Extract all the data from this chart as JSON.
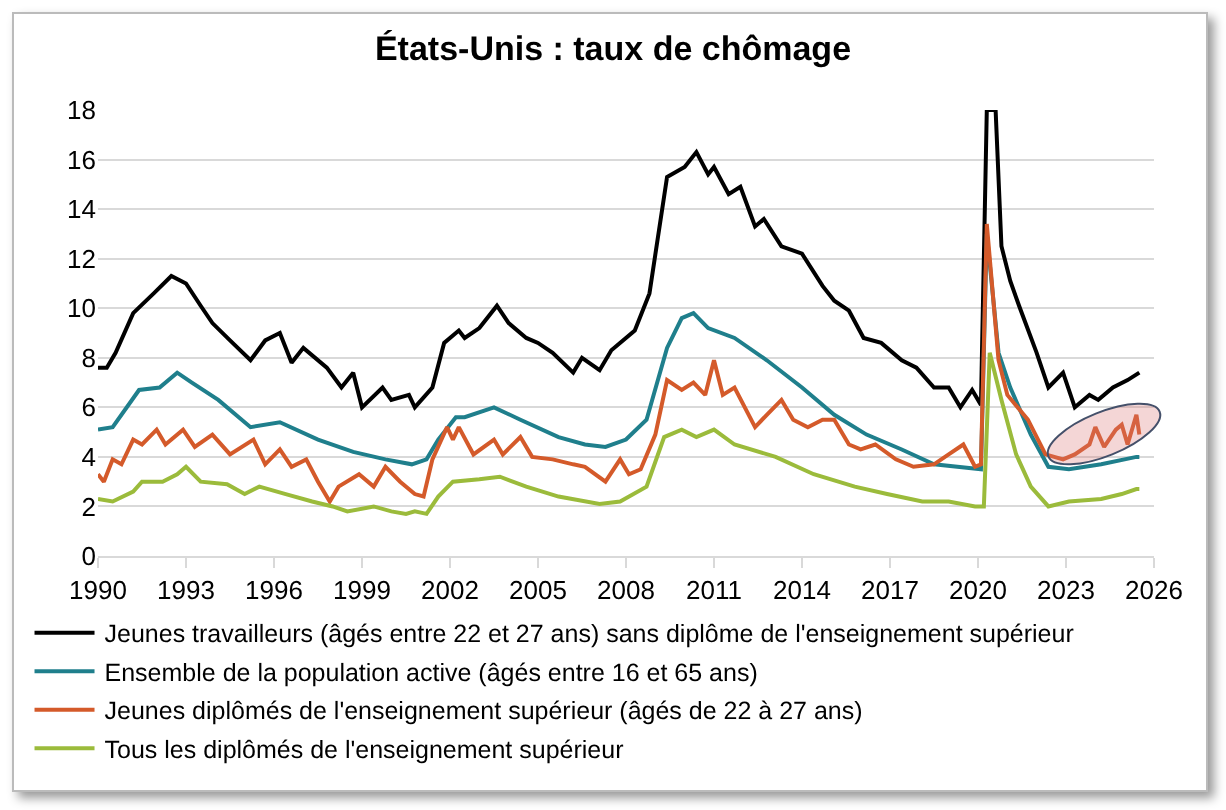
{
  "chart_data": {
    "type": "line",
    "title": "États-Unis : taux de chômage",
    "xlim": [
      1990,
      2026
    ],
    "xticks": [
      1990,
      1993,
      1996,
      1999,
      2002,
      2005,
      2008,
      2011,
      2014,
      2017,
      2020,
      2023,
      2026
    ],
    "ylim": [
      0,
      18
    ],
    "yticks": [
      0,
      2,
      4,
      6,
      8,
      10,
      12,
      14,
      16,
      18
    ],
    "grid": "y",
    "legend": "bottom",
    "marker": "none",
    "line_style": "solid",
    "series": [
      {
        "name": "Jeunes travailleurs (âgés entre 22 et 27 ans) sans diplôme de l'enseignement supérieur",
        "color": "#000000",
        "x": [
          1990,
          1990.3,
          1990.6,
          1991.2,
          1991.9,
          1992.5,
          1993,
          1993.5,
          1993.9,
          1994.5,
          1995.2,
          1995.7,
          1996.2,
          1996.6,
          1997,
          1997.8,
          1998.3,
          1998.7,
          1999,
          1999.7,
          2000,
          2000.6,
          2000.8,
          2001.4,
          2001.8,
          2002.3,
          2002.5,
          2003,
          2003.6,
          2004,
          2004.6,
          2005,
          2005.5,
          2006.2,
          2006.5,
          2007.1,
          2007.5,
          2008.3,
          2008.8,
          2009.4,
          2010,
          2010.4,
          2010.8,
          2011,
          2011.5,
          2011.9,
          2012.4,
          2012.7,
          2013.3,
          2014,
          2014.7,
          2015.1,
          2015.6,
          2016.1,
          2016.7,
          2017.4,
          2017.9,
          2018.5,
          2019,
          2019.4,
          2019.8,
          2020.1,
          2020.3,
          2020.6,
          2020.8,
          2021.1,
          2021.4,
          2022,
          2022.4,
          2022.9,
          2023.3,
          2023.8,
          2024.1,
          2024.6,
          2025.1,
          2025.5
        ],
        "values": [
          7.6,
          7.6,
          8.2,
          9.8,
          10.6,
          11.3,
          11.0,
          10.1,
          9.4,
          8.7,
          7.9,
          8.7,
          9.0,
          7.8,
          8.4,
          7.6,
          6.8,
          7.4,
          6.0,
          6.8,
          6.3,
          6.5,
          6.0,
          6.8,
          8.6,
          9.1,
          8.8,
          9.2,
          10.1,
          9.4,
          8.8,
          8.6,
          8.2,
          7.4,
          8.0,
          7.5,
          8.3,
          9.1,
          10.6,
          15.3,
          15.7,
          16.3,
          15.4,
          15.7,
          14.6,
          14.9,
          13.3,
          13.6,
          12.5,
          12.2,
          10.9,
          10.3,
          9.9,
          8.8,
          8.6,
          7.9,
          7.6,
          6.8,
          6.8,
          6.0,
          6.7,
          6.1,
          18,
          18,
          12.5,
          11.1,
          10.1,
          8.2,
          6.8,
          7.4,
          6.0,
          6.5,
          6.3,
          6.8,
          7.1,
          7.4
        ]
      },
      {
        "name": "Ensemble de la population active (âgés entre 16 et 65 ans)",
        "color": "#1f7f8c",
        "x": [
          1990,
          1990.5,
          1991.4,
          1992.1,
          1992.7,
          1993.2,
          1994.1,
          1995.2,
          1996.2,
          1997.5,
          1998.7,
          1999.8,
          2000.7,
          2001.2,
          2001.6,
          2002.2,
          2002.5,
          2003.5,
          2004.4,
          2005.7,
          2006.6,
          2007.3,
          2008,
          2008.7,
          2009.4,
          2009.9,
          2010.3,
          2010.8,
          2011.7,
          2012.8,
          2014,
          2015.1,
          2016.2,
          2017.4,
          2018.5,
          2020.1,
          2020.3,
          2020.7,
          2021.1,
          2021.8,
          2022.4,
          2023.1,
          2024.2,
          2025.4,
          2025.5
        ],
        "values": [
          5.1,
          5.2,
          6.7,
          6.8,
          7.4,
          7.0,
          6.3,
          5.2,
          5.4,
          4.7,
          4.2,
          3.9,
          3.7,
          3.9,
          4.7,
          5.6,
          5.6,
          6.0,
          5.5,
          4.8,
          4.5,
          4.4,
          4.7,
          5.5,
          8.4,
          9.6,
          9.8,
          9.2,
          8.8,
          7.9,
          6.8,
          5.7,
          4.9,
          4.3,
          3.7,
          3.5,
          13.0,
          8.2,
          6.8,
          4.9,
          3.6,
          3.5,
          3.7,
          4.0,
          4.0
        ]
      },
      {
        "name": "Jeunes diplômés de l'enseignement supérieur (âgés de 22 à 27 ans)",
        "color": "#d45a2a",
        "x": [
          1990,
          1990.2,
          1990.5,
          1990.8,
          1991.2,
          1991.5,
          1992,
          1992.3,
          1992.9,
          1993.3,
          1993.9,
          1994.5,
          1995.3,
          1995.7,
          1996.2,
          1996.6,
          1997.1,
          1997.5,
          1997.9,
          1998.2,
          1998.9,
          1999.4,
          1999.8,
          2000.3,
          2000.8,
          2001.1,
          2001.4,
          2001.9,
          2002.1,
          2002.3,
          2002.8,
          2003.5,
          2003.8,
          2004.4,
          2004.8,
          2005.5,
          2006.2,
          2006.6,
          2007.3,
          2007.8,
          2008.1,
          2008.5,
          2009,
          2009.4,
          2009.9,
          2010.3,
          2010.7,
          2011,
          2011.3,
          2011.7,
          2012.4,
          2012.8,
          2013.3,
          2013.7,
          2014.2,
          2014.7,
          2015.1,
          2015.6,
          2016,
          2016.5,
          2017.2,
          2017.8,
          2018.5,
          2019,
          2019.5,
          2019.9,
          2020.1,
          2020.3,
          2020.7,
          2021,
          2021.7,
          2022.3,
          2022.9,
          2023.3,
          2023.8,
          2024,
          2024.3,
          2024.7,
          2024.9,
          2025.1,
          2025.4,
          2025.5
        ],
        "values": [
          3.3,
          3.0,
          3.9,
          3.7,
          4.7,
          4.5,
          5.1,
          4.5,
          5.1,
          4.4,
          4.9,
          4.1,
          4.7,
          3.7,
          4.3,
          3.6,
          3.9,
          3.0,
          2.2,
          2.8,
          3.3,
          2.8,
          3.6,
          3.0,
          2.5,
          2.4,
          3.9,
          5.2,
          4.7,
          5.2,
          4.1,
          4.7,
          4.1,
          4.8,
          4.0,
          3.9,
          3.7,
          3.6,
          3.0,
          3.9,
          3.3,
          3.5,
          4.9,
          7.1,
          6.7,
          7.0,
          6.5,
          7.9,
          6.5,
          6.8,
          5.2,
          5.7,
          6.3,
          5.5,
          5.2,
          5.5,
          5.5,
          4.5,
          4.3,
          4.5,
          3.9,
          3.6,
          3.7,
          4.1,
          4.5,
          3.6,
          3.7,
          13.4,
          7.9,
          6.5,
          5.5,
          4.1,
          3.9,
          4.1,
          4.5,
          5.2,
          4.4,
          5.1,
          5.3,
          4.5,
          5.7,
          4.9
        ]
      },
      {
        "name": "Tous les diplômés de l'enseignement supérieur",
        "color": "#9bbb3b",
        "x": [
          1990,
          1990.5,
          1991.2,
          1991.5,
          1992.2,
          1992.7,
          1993,
          1993.5,
          1994.4,
          1995,
          1995.5,
          1996.4,
          1997.3,
          1998,
          1998.5,
          1999.4,
          2000,
          2000.5,
          2000.8,
          2001.2,
          2001.6,
          2002.1,
          2003,
          2003.7,
          2004.6,
          2005.7,
          2007.1,
          2007.8,
          2008.7,
          2009.3,
          2009.9,
          2010.4,
          2011,
          2011.7,
          2013.1,
          2014.4,
          2015.8,
          2016.9,
          2018.1,
          2019,
          2019.9,
          2020.2,
          2020.4,
          2020.8,
          2021.3,
          2021.8,
          2022.4,
          2023.1,
          2024.2,
          2024.9,
          2025.4,
          2025.5
        ],
        "values": [
          2.3,
          2.2,
          2.6,
          3.0,
          3.0,
          3.3,
          3.6,
          3.0,
          2.9,
          2.5,
          2.8,
          2.5,
          2.2,
          2.0,
          1.8,
          2.0,
          1.8,
          1.7,
          1.8,
          1.7,
          2.4,
          3.0,
          3.1,
          3.2,
          2.8,
          2.4,
          2.1,
          2.2,
          2.8,
          4.8,
          5.1,
          4.8,
          5.1,
          4.5,
          4.0,
          3.3,
          2.8,
          2.5,
          2.2,
          2.2,
          2.0,
          2.0,
          8.2,
          6.3,
          4.1,
          2.8,
          2.0,
          2.2,
          2.3,
          2.5,
          2.7,
          2.7
        ]
      }
    ]
  }
}
